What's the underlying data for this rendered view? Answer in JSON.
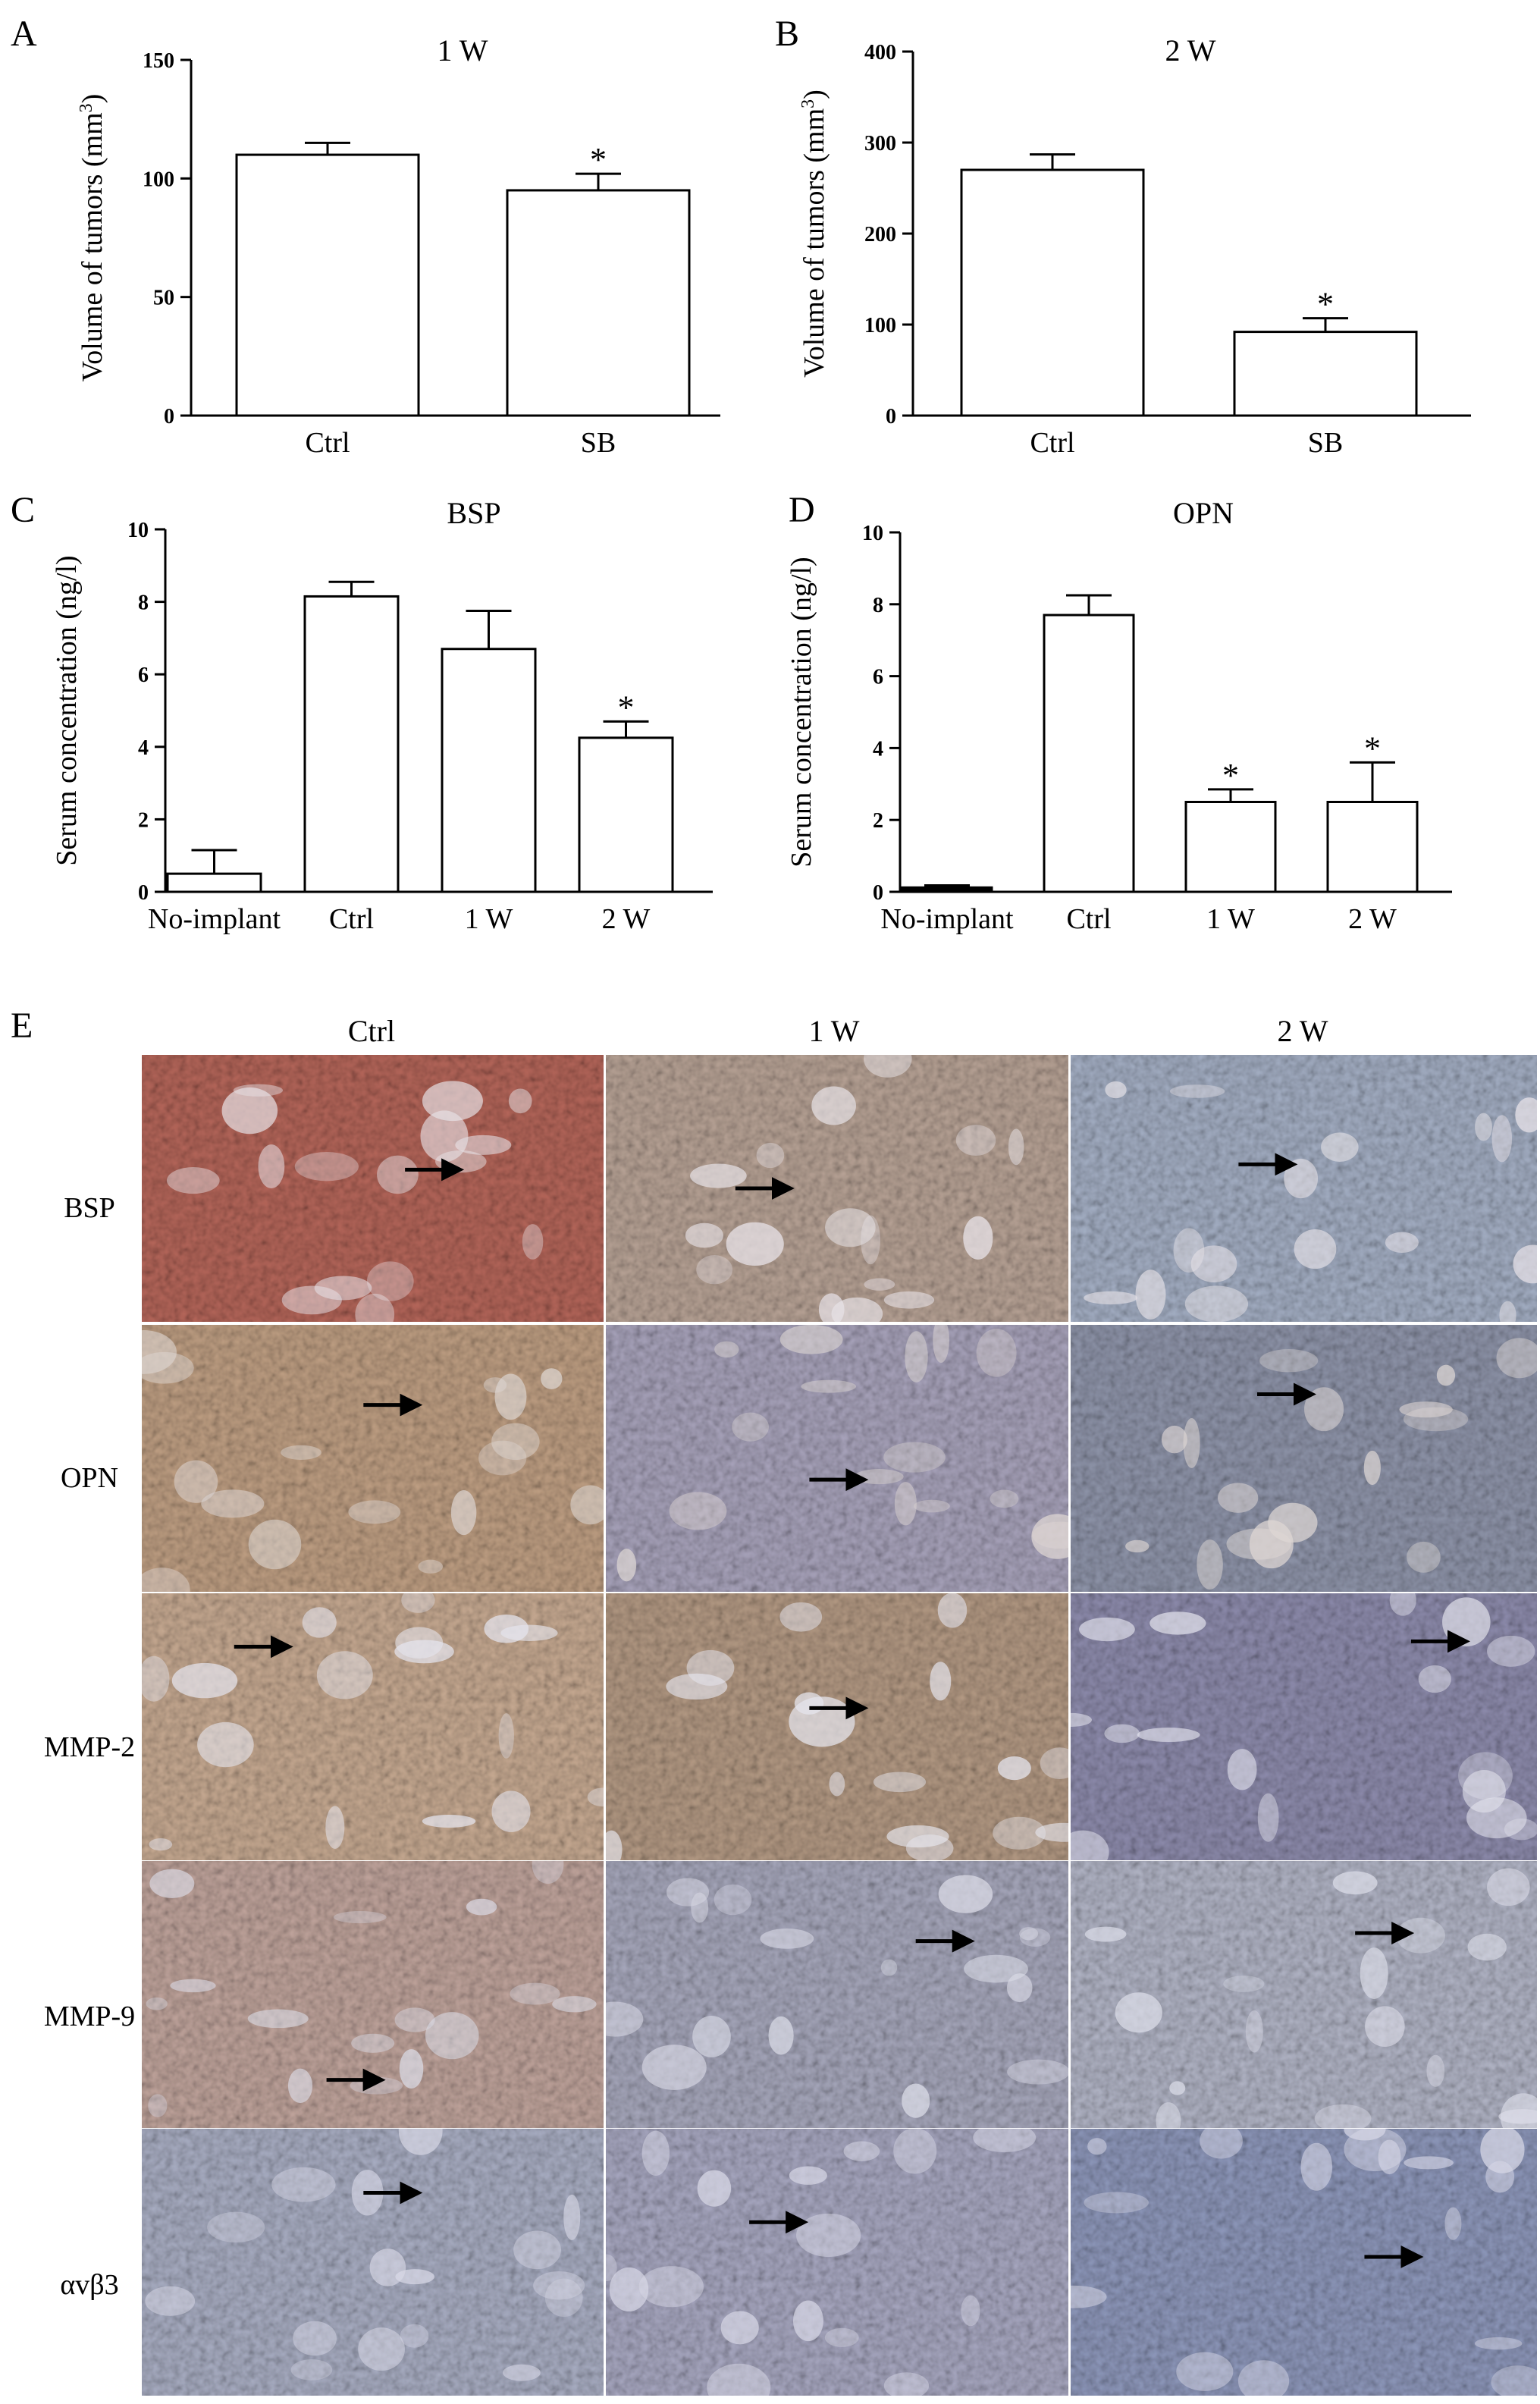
{
  "figure": {
    "panel_letters": [
      "A",
      "B",
      "C",
      "D",
      "E"
    ]
  },
  "chart_data": [
    {
      "type": "bar",
      "panel": "A",
      "title": "1 W",
      "ylabel": "Volume of tumors (mm3)",
      "ylabel_main": "Volume of tumors (mm",
      "ylabel_sup": "3",
      "ylabel_close": ")",
      "ylim": [
        0,
        150
      ],
      "yticks": [
        0,
        50,
        100,
        150
      ],
      "categories": [
        "Ctrl",
        "SB"
      ],
      "values": [
        110,
        95
      ],
      "errors": [
        5,
        7
      ],
      "significant": [
        false,
        true
      ]
    },
    {
      "type": "bar",
      "panel": "B",
      "title": "2 W",
      "ylabel": "Volume of tumors (mm3)",
      "ylabel_main": "Volume of tumors (mm",
      "ylabel_sup": "3",
      "ylabel_close": ")",
      "ylim": [
        0,
        400
      ],
      "yticks": [
        0,
        100,
        200,
        300,
        400
      ],
      "categories": [
        "Ctrl",
        "SB"
      ],
      "values": [
        270,
        92
      ],
      "errors": [
        17,
        15
      ],
      "significant": [
        false,
        true
      ]
    },
    {
      "type": "bar",
      "panel": "C",
      "title": "BSP",
      "ylabel": "Serum concentration (ng/l)",
      "ylim": [
        0,
        10
      ],
      "yticks": [
        0,
        2,
        4,
        6,
        8,
        10
      ],
      "categories": [
        "No-implant",
        "Ctrl",
        "1 W",
        "2 W"
      ],
      "values": [
        0.5,
        8.15,
        6.7,
        4.25
      ],
      "errors": [
        0.65,
        0.4,
        1.05,
        0.45
      ],
      "significant": [
        false,
        false,
        false,
        true
      ]
    },
    {
      "type": "bar",
      "panel": "D",
      "title": "OPN",
      "ylabel": "Serum concentration (ng/l)",
      "ylim": [
        0,
        10
      ],
      "yticks": [
        0,
        2,
        4,
        6,
        8,
        10
      ],
      "categories": [
        "No-implant",
        "Ctrl",
        "1 W",
        "2 W"
      ],
      "values": [
        0.12,
        7.7,
        2.5,
        2.5
      ],
      "errors": [
        0.06,
        0.55,
        0.35,
        1.1
      ],
      "significant": [
        false,
        false,
        true,
        true
      ]
    }
  ],
  "histology": {
    "columns": [
      "Ctrl",
      "1 W",
      "2 W"
    ],
    "rows": [
      "BSP",
      "OPN",
      "MMP-2",
      "MMP-9",
      "αvβ3"
    ],
    "tints": [
      [
        "#b5665a",
        "#b8a396",
        "#a4afc4"
      ],
      [
        "#bf9f83",
        "#a8a3bb",
        "#8f95aa"
      ],
      [
        "#c7aa92",
        "#b49a84",
        "#8e8cad"
      ],
      [
        "#c0a49c",
        "#a7a8bc",
        "#b2b5c6"
      ],
      [
        "#a9aec3",
        "#a8a8c1",
        "#8e98bb"
      ]
    ],
    "highlight_colors": [
      "#e8e3e8",
      "#ded7d4",
      "#e6e6ef",
      "#dcdde8",
      "#d9d9e7"
    ],
    "arrows": [
      [
        [
          0.57,
          0.43
        ],
        [
          0.28,
          0.5
        ],
        [
          0.36,
          0.41
        ]
      ],
      [
        [
          0.48,
          0.3
        ],
        [
          0.44,
          0.58
        ],
        [
          0.4,
          0.26
        ]
      ],
      [
        [
          0.2,
          0.2
        ],
        [
          0.44,
          0.43
        ],
        [
          0.73,
          0.18
        ]
      ],
      [
        [
          0.4,
          0.82
        ],
        [
          0.67,
          0.3
        ],
        [
          0.61,
          0.27
        ]
      ],
      [
        [
          0.48,
          0.24
        ],
        [
          0.31,
          0.35
        ],
        [
          0.63,
          0.48
        ]
      ]
    ]
  }
}
